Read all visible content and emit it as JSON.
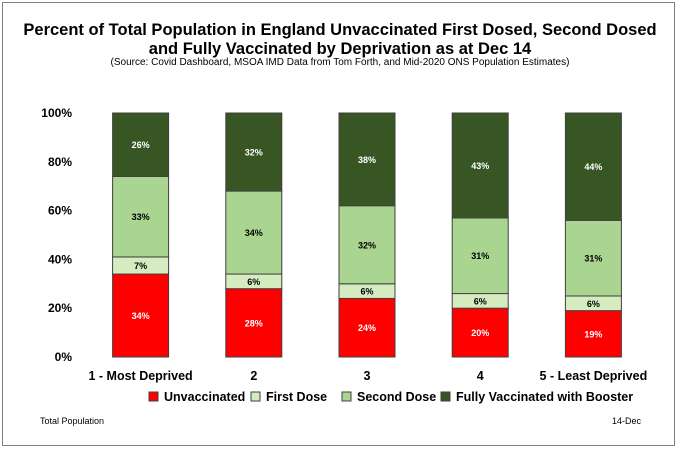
{
  "chart_data": {
    "type": "bar",
    "stacked": true,
    "title_line1": "Percent of Total Population in England Unvaccinated First Dosed, Second Dosed",
    "title_line2": "and Fully Vaccinated by Deprivation as at Dec 14",
    "subtitle": "(Source: Covid Dashboard, MSOA IMD Data from Tom Forth, and Mid-2020 ONS Population Estimates)",
    "categories": [
      "1 - Most Deprived",
      "2",
      "3",
      "4",
      "5 - Least Deprived"
    ],
    "y_ticks": [
      "0%",
      "20%",
      "40%",
      "60%",
      "80%",
      "100%"
    ],
    "ylim": [
      0,
      100
    ],
    "legend_position": "bottom",
    "grid": false,
    "series": [
      {
        "name": "Unvaccinated",
        "color": "#ff0000",
        "label_color": "#ffffff",
        "values": [
          34,
          28,
          24,
          20,
          19
        ],
        "labels": [
          "34%",
          "28%",
          "24%",
          "20%",
          "19%"
        ]
      },
      {
        "name": "First Dose",
        "color": "#d5ecc1",
        "label_color": "#000000",
        "values": [
          7,
          6,
          6,
          6,
          6
        ],
        "labels": [
          "7%",
          "6%",
          "6%",
          "6%",
          "6%"
        ]
      },
      {
        "name": "Second Dose",
        "color": "#a9d590",
        "label_color": "#000000",
        "values": [
          33,
          34,
          32,
          31,
          31
        ],
        "labels": [
          "33%",
          "34%",
          "32%",
          "31%",
          "31%"
        ]
      },
      {
        "name": "Fully Vaccinated with Booster",
        "color": "#375623",
        "label_color": "#ffffff",
        "values": [
          26,
          32,
          38,
          43,
          44
        ],
        "labels": [
          "26%",
          "32%",
          "38%",
          "43%",
          "44%"
        ]
      }
    ]
  },
  "footer": {
    "left": "Total Population",
    "right": "14-Dec"
  }
}
